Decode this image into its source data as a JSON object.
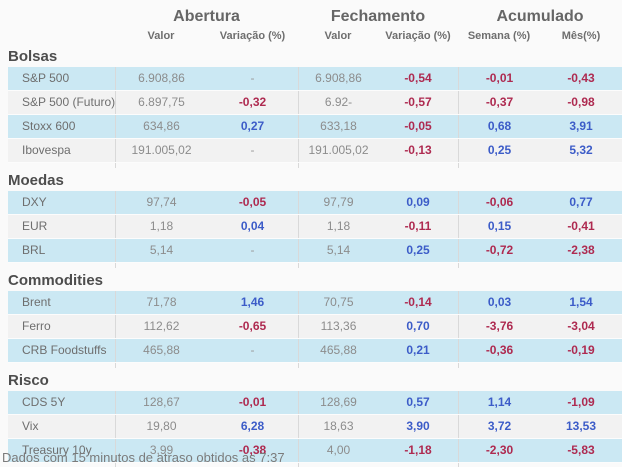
{
  "chart_data": {
    "type": "table",
    "column_groups": [
      {
        "label": "Abertura",
        "columns": [
          "Valor",
          "Variação (%)"
        ]
      },
      {
        "label": "Fechamento",
        "columns": [
          "Valor",
          "Variação (%)"
        ]
      },
      {
        "label": "Acumulado",
        "columns": [
          "Semana (%)",
          "Mês(%)"
        ]
      }
    ],
    "sections": [
      {
        "title": "Bolsas",
        "rows": [
          {
            "label": "S&P 500",
            "values": [
              "6.908,86",
              "-",
              "6.908,86",
              "-0,54",
              "-0,01",
              "-0,43"
            ]
          },
          {
            "label": "S&P 500 (Futuro)",
            "values": [
              "6.897,75",
              "-0,32",
              "6.92-",
              "-0,57",
              "-0,37",
              "-0,98"
            ]
          },
          {
            "label": "Stoxx 600",
            "values": [
              "634,86",
              "0,27",
              "633,18",
              "-0,05",
              "0,68",
              "3,91"
            ]
          },
          {
            "label": "Ibovespa",
            "values": [
              "191.005,02",
              "-",
              "191.005,02",
              "-0,13",
              "0,25",
              "5,32"
            ]
          }
        ]
      },
      {
        "title": "Moedas",
        "rows": [
          {
            "label": "DXY",
            "values": [
              "97,74",
              "-0,05",
              "97,79",
              "0,09",
              "-0,06",
              "0,77"
            ]
          },
          {
            "label": "EUR",
            "values": [
              "1,18",
              "0,04",
              "1,18",
              "-0,11",
              "0,15",
              "-0,41"
            ]
          },
          {
            "label": "BRL",
            "values": [
              "5,14",
              "-",
              "5,14",
              "0,25",
              "-0,72",
              "-2,38"
            ]
          }
        ]
      },
      {
        "title": "Commodities",
        "rows": [
          {
            "label": "Brent",
            "values": [
              "71,78",
              "1,46",
              "70,75",
              "-0,14",
              "0,03",
              "1,54"
            ]
          },
          {
            "label": "Ferro",
            "values": [
              "112,62",
              "-0,65",
              "113,36",
              "0,70",
              "-3,76",
              "-3,04"
            ]
          },
          {
            "label": "CRB Foodstuffs",
            "values": [
              "465,88",
              "-",
              "465,88",
              "0,21",
              "-0,36",
              "-0,19"
            ]
          }
        ]
      },
      {
        "title": "Risco",
        "rows": [
          {
            "label": "CDS 5Y",
            "values": [
              "128,67",
              "-0,01",
              "128,69",
              "0,57",
              "1,14",
              "-1,09"
            ]
          },
          {
            "label": "Vix",
            "values": [
              "19,80",
              "6,28",
              "18,63",
              "3,90",
              "3,72",
              "13,53"
            ]
          },
          {
            "label": "Treasury 10y",
            "values": [
              "3,99",
              "-0,38",
              "4,00",
              "-1,18",
              "-2,30",
              "-5,83"
            ]
          }
        ]
      }
    ]
  },
  "footer": {
    "note": "Dados com 15 minutos de atraso obtidos as 7:37"
  },
  "colors": {
    "positive": "#3c5cc8",
    "negative": "#ae2a50",
    "row_highlight": "#cbe8f3",
    "row_alt": "#f2f2f2",
    "divider": "#d9d9d9"
  }
}
